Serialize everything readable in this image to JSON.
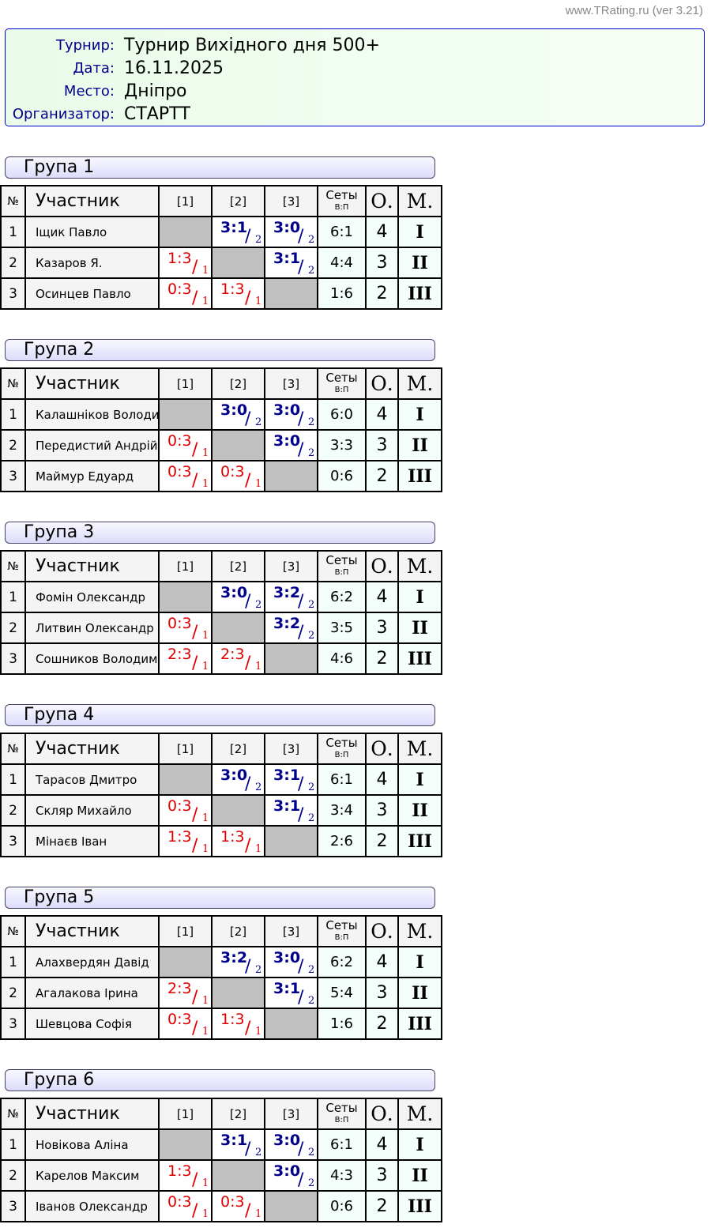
{
  "version": "www.TRating.ru (ver 3.21)",
  "info": [
    {
      "label": "Турнир:",
      "value": "Турнир Вихідного дня 500+"
    },
    {
      "label": "Дата:",
      "value": "16.11.2025"
    },
    {
      "label": "Место:",
      "value": "Дніпро"
    },
    {
      "label": "Организатор:",
      "value": "СТАРТТ"
    }
  ],
  "headers": {
    "no": "№",
    "name": "Участник",
    "c1": "[1]",
    "c2": "[2]",
    "c3": "[3]",
    "sets": "Сеты",
    "sets_sub": "В:П",
    "points": "О.",
    "place": "М."
  },
  "colors": {
    "win": "#00008b",
    "loss": "#e00000",
    "self": "#c0c0c0"
  },
  "groups": [
    {
      "title": "Група 1",
      "rows": [
        {
          "no": "1",
          "name": "Іщик Павло",
          "res": [
            null,
            [
              "3:1",
              "2"
            ],
            [
              "3:0",
              "2"
            ]
          ],
          "sets": "6:1",
          "points": "4",
          "place": "I"
        },
        {
          "no": "2",
          "name": "Казаров Я.",
          "res": [
            [
              "1:3",
              "1"
            ],
            null,
            [
              "3:1",
              "2"
            ]
          ],
          "sets": "4:4",
          "points": "3",
          "place": "II"
        },
        {
          "no": "3",
          "name": "Осинцев Павло",
          "res": [
            [
              "0:3",
              "1"
            ],
            [
              "1:3",
              "1"
            ],
            null
          ],
          "sets": "1:6",
          "points": "2",
          "place": "III"
        }
      ]
    },
    {
      "title": "Група 2",
      "rows": [
        {
          "no": "1",
          "name": "Калашніков Володими",
          "res": [
            null,
            [
              "3:0",
              "2"
            ],
            [
              "3:0",
              "2"
            ]
          ],
          "sets": "6:0",
          "points": "4",
          "place": "I"
        },
        {
          "no": "2",
          "name": "Передистий Андрій",
          "res": [
            [
              "0:3",
              "1"
            ],
            null,
            [
              "3:0",
              "2"
            ]
          ],
          "sets": "3:3",
          "points": "3",
          "place": "II"
        },
        {
          "no": "3",
          "name": "Маймур Едуард",
          "res": [
            [
              "0:3",
              "1"
            ],
            [
              "0:3",
              "1"
            ],
            null
          ],
          "sets": "0:6",
          "points": "2",
          "place": "III"
        }
      ]
    },
    {
      "title": "Група 3",
      "rows": [
        {
          "no": "1",
          "name": "Фомін Олександр",
          "res": [
            null,
            [
              "3:0",
              "2"
            ],
            [
              "3:2",
              "2"
            ]
          ],
          "sets": "6:2",
          "points": "4",
          "place": "I"
        },
        {
          "no": "2",
          "name": "Литвин Олександр",
          "res": [
            [
              "0:3",
              "1"
            ],
            null,
            [
              "3:2",
              "2"
            ]
          ],
          "sets": "3:5",
          "points": "3",
          "place": "II"
        },
        {
          "no": "3",
          "name": "Сошников Володимир",
          "res": [
            [
              "2:3",
              "1"
            ],
            [
              "2:3",
              "1"
            ],
            null
          ],
          "sets": "4:6",
          "points": "2",
          "place": "III"
        }
      ]
    },
    {
      "title": "Група 4",
      "rows": [
        {
          "no": "1",
          "name": "Тарасов Дмитро",
          "res": [
            null,
            [
              "3:0",
              "2"
            ],
            [
              "3:1",
              "2"
            ]
          ],
          "sets": "6:1",
          "points": "4",
          "place": "I"
        },
        {
          "no": "2",
          "name": "Скляр Михайло",
          "res": [
            [
              "0:3",
              "1"
            ],
            null,
            [
              "3:1",
              "2"
            ]
          ],
          "sets": "3:4",
          "points": "3",
          "place": "II"
        },
        {
          "no": "3",
          "name": "Мінаєв Іван",
          "res": [
            [
              "1:3",
              "1"
            ],
            [
              "1:3",
              "1"
            ],
            null
          ],
          "sets": "2:6",
          "points": "2",
          "place": "III"
        }
      ]
    },
    {
      "title": "Група 5",
      "rows": [
        {
          "no": "1",
          "name": "Алахвердян Давід",
          "res": [
            null,
            [
              "3:2",
              "2"
            ],
            [
              "3:0",
              "2"
            ]
          ],
          "sets": "6:2",
          "points": "4",
          "place": "I"
        },
        {
          "no": "2",
          "name": "Агалакова Ірина",
          "res": [
            [
              "2:3",
              "1"
            ],
            null,
            [
              "3:1",
              "2"
            ]
          ],
          "sets": "5:4",
          "points": "3",
          "place": "II"
        },
        {
          "no": "3",
          "name": "Шевцова Софія",
          "res": [
            [
              "0:3",
              "1"
            ],
            [
              "1:3",
              "1"
            ],
            null
          ],
          "sets": "1:6",
          "points": "2",
          "place": "III"
        }
      ]
    },
    {
      "title": "Група 6",
      "rows": [
        {
          "no": "1",
          "name": "Новікова Аліна",
          "res": [
            null,
            [
              "3:1",
              "2"
            ],
            [
              "3:0",
              "2"
            ]
          ],
          "sets": "6:1",
          "points": "4",
          "place": "I"
        },
        {
          "no": "2",
          "name": "Карелов Максим",
          "res": [
            [
              "1:3",
              "1"
            ],
            null,
            [
              "3:0",
              "2"
            ]
          ],
          "sets": "4:3",
          "points": "3",
          "place": "II"
        },
        {
          "no": "3",
          "name": "Іванов Олександр",
          "res": [
            [
              "0:3",
              "1"
            ],
            [
              "0:3",
              "1"
            ],
            null
          ],
          "sets": "0:6",
          "points": "2",
          "place": "III"
        }
      ]
    }
  ]
}
